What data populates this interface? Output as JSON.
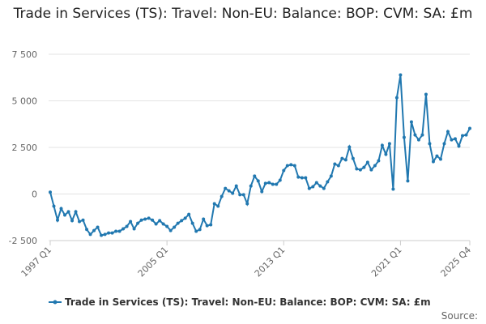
{
  "chart_data": {
    "type": "line",
    "title": "Trade in Services (TS): Travel: Non-EU: Balance: BOP: CVM: SA: £m",
    "source": "Source:",
    "categories": [
      "1997 Q1",
      null,
      null,
      null,
      null,
      null,
      null,
      null,
      null,
      null,
      null,
      null,
      null,
      null,
      null,
      null,
      null,
      null,
      null,
      null,
      null,
      null,
      null,
      null,
      null,
      null,
      null,
      null,
      null,
      null,
      null,
      null,
      "2005 Q1",
      null,
      null,
      null,
      null,
      null,
      null,
      null,
      null,
      null,
      null,
      null,
      null,
      null,
      null,
      null,
      null,
      null,
      null,
      null,
      null,
      null,
      null,
      null,
      null,
      null,
      null,
      null,
      null,
      null,
      null,
      null,
      "2013 Q1",
      null,
      null,
      null,
      null,
      null,
      null,
      null,
      null,
      null,
      null,
      null,
      null,
      null,
      null,
      null,
      null,
      null,
      null,
      null,
      null,
      null,
      null,
      null,
      null,
      null,
      null,
      null,
      null,
      null,
      null,
      null,
      "2021 Q1",
      null,
      null,
      null,
      null,
      null,
      null,
      null,
      null,
      null,
      null,
      null,
      null,
      null,
      null,
      null,
      null,
      null,
      null,
      "2025 Q4"
    ],
    "series": [
      {
        "name": "Trade in Services (TS): Travel: Non-EU: Balance: BOP: CVM: SA: £m",
        "color": "#2178b0",
        "values": [
          100,
          -650,
          -1400,
          -780,
          -1130,
          -950,
          -1430,
          -950,
          -1480,
          -1400,
          -1900,
          -2170,
          -1960,
          -1780,
          -2220,
          -2170,
          -2090,
          -2090,
          -2000,
          -2000,
          -1870,
          -1740,
          -1480,
          -1870,
          -1570,
          -1400,
          -1350,
          -1300,
          -1400,
          -1610,
          -1430,
          -1610,
          -1740,
          -1960,
          -1780,
          -1570,
          -1430,
          -1300,
          -1090,
          -1570,
          -2000,
          -1910,
          -1350,
          -1700,
          -1650,
          -520,
          -650,
          -130,
          300,
          170,
          40,
          430,
          -40,
          -40,
          -520,
          430,
          960,
          700,
          130,
          570,
          610,
          520,
          520,
          740,
          1260,
          1520,
          1570,
          1520,
          910,
          870,
          870,
          300,
          390,
          610,
          430,
          300,
          650,
          960,
          1610,
          1520,
          1910,
          1830,
          2520,
          1910,
          1350,
          1300,
          1430,
          1700,
          1300,
          1520,
          1780,
          2610,
          2130,
          2700,
          260,
          5170,
          6390,
          3040,
          700,
          3870,
          3170,
          2910,
          3170,
          5350,
          2700,
          1740,
          2040,
          1870,
          2700,
          3350,
          2910,
          2960,
          2570,
          3130,
          3170,
          3520
        ]
      }
    ],
    "ylim": [
      -2500,
      7500
    ],
    "yticks": [
      {
        "value": -2500,
        "label": "-2 500"
      },
      0,
      {
        "value": 2500,
        "label": "2 500"
      },
      {
        "value": 5000,
        "label": "5 000"
      },
      {
        "value": 7500,
        "label": "7 500"
      }
    ],
    "grid": true,
    "legend": "bottom"
  }
}
